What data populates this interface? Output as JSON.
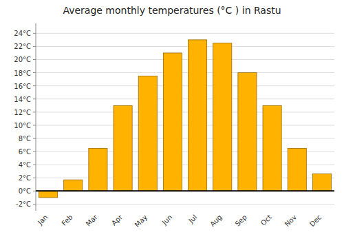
{
  "chart_data": {
    "type": "bar",
    "title": "Average monthly temperatures (°C ) in Rastu",
    "categories": [
      "Jan",
      "Feb",
      "Mar",
      "Apr",
      "May",
      "Jun",
      "Jul",
      "Aug",
      "Sep",
      "Oct",
      "Nov",
      "Dec"
    ],
    "values": [
      -1.0,
      1.7,
      6.5,
      13.0,
      17.5,
      21.0,
      23.0,
      22.5,
      18.0,
      13.0,
      6.5,
      2.6
    ],
    "color": "#FFB300",
    "ylim": [
      -3.0,
      25.5
    ],
    "yticks": [
      {
        "value": -2,
        "label": "-2°C"
      },
      {
        "value": 0,
        "label": "0°C"
      },
      {
        "value": 2,
        "label": "2°C"
      },
      {
        "value": 4,
        "label": "4°C"
      },
      {
        "value": 6,
        "label": "6°C"
      },
      {
        "value": 8,
        "label": "8°C"
      },
      {
        "value": 10,
        "label": "10°C"
      },
      {
        "value": 12,
        "label": "12°C"
      },
      {
        "value": 14,
        "label": "14°C"
      },
      {
        "value": 16,
        "label": "16°C"
      },
      {
        "value": 18,
        "label": "18°C"
      },
      {
        "value": 20,
        "label": "20°C"
      },
      {
        "value": 22,
        "label": "22°C"
      },
      {
        "value": 24,
        "label": "24°C"
      }
    ],
    "grid": true
  }
}
